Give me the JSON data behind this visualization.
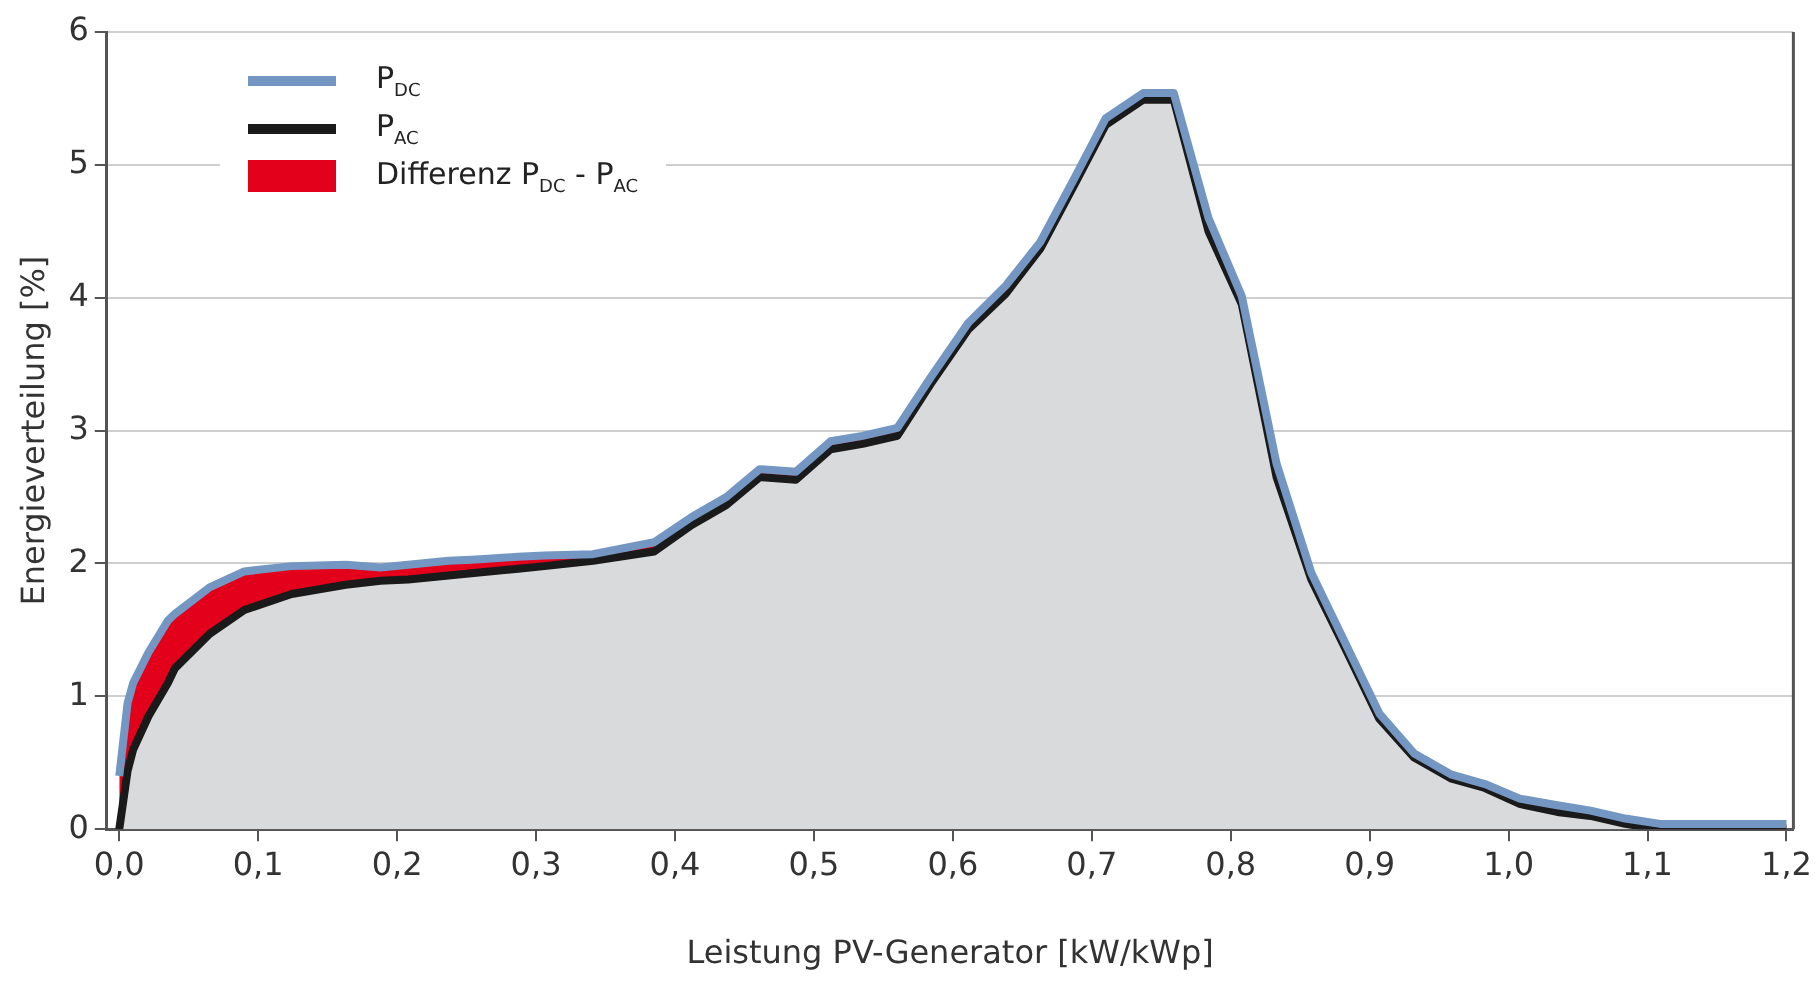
{
  "chart_data": {
    "type": "area",
    "xlabel": "Leistung PV-Generator [kW/kWp]",
    "ylabel": "Energieverteilung [%]",
    "x": [
      0,
      0.006,
      0.01,
      0.021,
      0.035,
      0.04,
      0.065,
      0.09,
      0.124,
      0.163,
      0.188,
      0.208,
      0.237,
      0.257,
      0.287,
      0.306,
      0.341,
      0.385,
      0.412,
      0.437,
      0.461,
      0.487,
      0.512,
      0.535,
      0.56,
      0.584,
      0.611,
      0.638,
      0.663,
      0.688,
      0.71,
      0.737,
      0.759,
      0.784,
      0.808,
      0.833,
      0.858,
      0.882,
      0.907,
      0.932,
      0.959,
      0.983,
      1.008,
      1.035,
      1.059,
      1.084,
      1.109,
      1.2
    ],
    "series": [
      {
        "name": "P$_{DC}$",
        "type": "line",
        "color": "#7397c2",
        "values": [
          0.4,
          0.95,
          1.1,
          1.33,
          1.57,
          1.62,
          1.82,
          1.94,
          1.98,
          1.99,
          1.97,
          1.99,
          2.02,
          2.03,
          2.05,
          2.06,
          2.07,
          2.16,
          2.35,
          2.5,
          2.71,
          2.69,
          2.92,
          2.96,
          3.02,
          3.4,
          3.81,
          4.09,
          4.42,
          4.91,
          5.35,
          5.54,
          5.54,
          4.6,
          4.01,
          2.75,
          1.93,
          1.41,
          0.87,
          0.57,
          0.41,
          0.34,
          0.23,
          0.18,
          0.14,
          0.08,
          0.04,
          0.04
        ]
      },
      {
        "name": "P$_{AC}$",
        "type": "area",
        "color": "#1a1a1a",
        "values": [
          0,
          0.44,
          0.6,
          0.85,
          1.1,
          1.21,
          1.47,
          1.65,
          1.77,
          1.84,
          1.87,
          1.88,
          1.91,
          1.93,
          1.96,
          1.98,
          2.02,
          2.09,
          2.29,
          2.44,
          2.65,
          2.63,
          2.86,
          2.9,
          2.96,
          3.35,
          3.76,
          4.03,
          4.37,
          4.86,
          5.3,
          5.49,
          5.49,
          4.5,
          3.95,
          2.65,
          1.88,
          1.37,
          0.83,
          0.54,
          0.38,
          0.31,
          0.19,
          0.13,
          0.1,
          0.04,
          0,
          0
        ]
      },
      {
        "name": "Differenz P$_{DC}$ - P$_{AC}$",
        "type": "area",
        "color": "#e2001a",
        "values": [
          0.4,
          0.51,
          0.5,
          0.48,
          0.47,
          0.41,
          0.35,
          0.29,
          0.21,
          0.15,
          0.1,
          0.11,
          0.11,
          0.1,
          0.09,
          0.08,
          0.05,
          0.07,
          0.06,
          0.06,
          0.06,
          0.06,
          0.06,
          0.06,
          0.06,
          0.05,
          0.05,
          0.06,
          0.05,
          0.05,
          0.05,
          0.05,
          0.05,
          0.1,
          0.06,
          0.1,
          0.05,
          0.04,
          0.04,
          0.03,
          0.03,
          0.03,
          0.04,
          0.05,
          0.04,
          0.04,
          0.04,
          0.04
        ]
      }
    ],
    "xlim": [
      -0.009,
      1.205
    ],
    "xticks": [
      {
        "value": 0,
        "label": "0,0"
      },
      {
        "value": 0.1,
        "label": "0,1"
      },
      {
        "value": 0.2,
        "label": "0,2"
      },
      {
        "value": 0.3,
        "label": "0,3"
      },
      {
        "value": 0.4,
        "label": "0,4"
      },
      {
        "value": 0.5,
        "label": "0,5"
      },
      {
        "value": 0.6,
        "label": "0,6"
      },
      {
        "value": 0.7,
        "label": "0,7"
      },
      {
        "value": 0.8,
        "label": "0,8"
      },
      {
        "value": 0.9,
        "label": "0,9"
      },
      {
        "value": 1.0,
        "label": "1,0"
      },
      {
        "value": 1.1,
        "label": "1,1"
      },
      {
        "value": 1.2,
        "label": "1,2"
      }
    ],
    "ylim": [
      0,
      6
    ],
    "yticks": [
      0,
      1,
      2,
      3,
      4,
      5,
      6
    ],
    "stacked": true,
    "grid": "y",
    "legend": "top left"
  }
}
